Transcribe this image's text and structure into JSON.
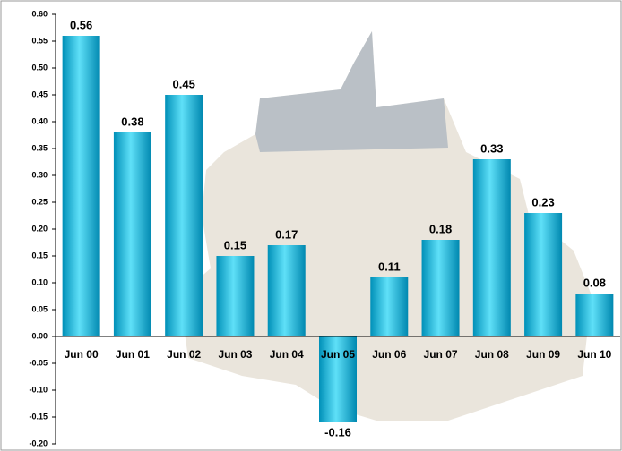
{
  "chart_data": {
    "type": "bar",
    "categories": [
      "Jun 00",
      "Jun 01",
      "Jun 02",
      "Jun 03",
      "Jun 04",
      "Jun 05",
      "Jun 06",
      "Jun 07",
      "Jun 08",
      "Jun 09",
      "Jun 10"
    ],
    "values": [
      0.56,
      0.38,
      0.45,
      0.15,
      0.17,
      -0.16,
      0.11,
      0.18,
      0.33,
      0.23,
      0.08
    ],
    "color": "#00aed6",
    "ylim": [
      -0.2,
      0.6
    ],
    "yticks": [
      {
        "value": -0.2,
        "label": "-0.20"
      },
      -0.15,
      {
        "value": -0.1,
        "label": "-0.10"
      },
      -0.05,
      {
        "value": 0,
        "label": "0.00"
      },
      0.05,
      {
        "value": 0.1,
        "label": "0.10"
      },
      0.15,
      {
        "value": 0.2,
        "label": "0.20"
      },
      0.25,
      {
        "value": 0.3,
        "label": "0.30"
      },
      0.35,
      {
        "value": 0.4,
        "label": "0.40"
      },
      0.45,
      {
        "value": 0.5,
        "label": "0.50"
      },
      0.55,
      {
        "value": 0.6,
        "label": "0.60"
      }
    ],
    "grid": false
  }
}
